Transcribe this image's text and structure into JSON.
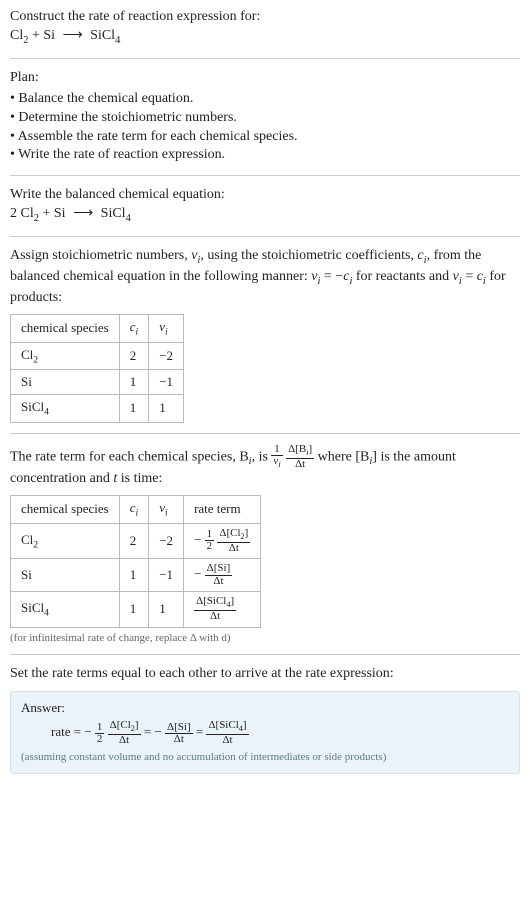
{
  "header": {
    "title": "Construct the rate of reaction expression for:",
    "equation_lhs1": "Cl",
    "equation_lhs1_sub": "2",
    "equation_plus": " + ",
    "equation_lhs2": "Si",
    "equation_arrow": "⟶",
    "equation_rhs": "SiCl",
    "equation_rhs_sub": "4"
  },
  "plan": {
    "title": "Plan:",
    "items": [
      "Balance the chemical equation.",
      "Determine the stoichiometric numbers.",
      "Assemble the rate term for each chemical species.",
      "Write the rate of reaction expression."
    ]
  },
  "balanced": {
    "title": "Write the balanced chemical equation:",
    "coef1": "2 ",
    "sp1": "Cl",
    "sp1_sub": "2",
    "plus": " + ",
    "sp2": "Si",
    "arrow": "⟶",
    "sp3": "SiCl",
    "sp3_sub": "4"
  },
  "assign": {
    "text_a": "Assign stoichiometric numbers, ",
    "nu_i": "ν",
    "nu_i_sub": "i",
    "text_b": ", using the stoichiometric coefficients, ",
    "c_i": "c",
    "c_i_sub": "i",
    "text_c": ", from the balanced chemical equation in the following manner: ",
    "rel1_a": "ν",
    "rel1_a_sub": "i",
    "rel1_b": " = −",
    "rel1_c": "c",
    "rel1_c_sub": "i",
    "text_d": " for reactants and ",
    "rel2_a": "ν",
    "rel2_a_sub": "i",
    "rel2_b": " = ",
    "rel2_c": "c",
    "rel2_c_sub": "i",
    "text_e": " for products:"
  },
  "table1": {
    "headers": {
      "species": "chemical species",
      "ci": "c",
      "ci_sub": "i",
      "vi": "ν",
      "vi_sub": "i"
    },
    "rows": [
      {
        "name": "Cl",
        "name_sub": "2",
        "ci": "2",
        "vi": "−2"
      },
      {
        "name": "Si",
        "name_sub": "",
        "ci": "1",
        "vi": "−1"
      },
      {
        "name": "SiCl",
        "name_sub": "4",
        "ci": "1",
        "vi": "1"
      }
    ]
  },
  "rate_term": {
    "text_a": "The rate term for each chemical species, B",
    "Bi_sub": "i",
    "text_b": ", is ",
    "frac1_num": "1",
    "frac1_den_a": "ν",
    "frac1_den_sub": "i",
    "frac2_num_a": "Δ[B",
    "frac2_num_sub": "i",
    "frac2_num_b": "]",
    "frac2_den": "Δt",
    "text_c": " where [B",
    "text_c_sub": "i",
    "text_d": "] is the amount concentration and ",
    "t": "t",
    "text_e": " is time:"
  },
  "table2": {
    "headers": {
      "species": "chemical species",
      "ci": "c",
      "ci_sub": "i",
      "vi": "ν",
      "vi_sub": "i",
      "rate": "rate term"
    },
    "rows": [
      {
        "name": "Cl",
        "name_sub": "2",
        "ci": "2",
        "vi": "−2",
        "neg": "−",
        "f1_num": "1",
        "f1_den": "2",
        "f2_num": "Δ[Cl",
        "f2_num_sub": "2",
        "f2_num_b": "]",
        "f2_den": "Δt"
      },
      {
        "name": "Si",
        "name_sub": "",
        "ci": "1",
        "vi": "−1",
        "neg": "−",
        "f1_num": "",
        "f1_den": "",
        "f2_num": "Δ[Si]",
        "f2_num_sub": "",
        "f2_num_b": "",
        "f2_den": "Δt"
      },
      {
        "name": "SiCl",
        "name_sub": "4",
        "ci": "1",
        "vi": "1",
        "neg": "",
        "f1_num": "",
        "f1_den": "",
        "f2_num": "Δ[SiCl",
        "f2_num_sub": "4",
        "f2_num_b": "]",
        "f2_den": "Δt"
      }
    ],
    "caption": "(for infinitesimal rate of change, replace Δ with d)"
  },
  "final": {
    "text": "Set the rate terms equal to each other to arrive at the rate expression:"
  },
  "answer": {
    "title": "Answer:",
    "rate_label": "rate = ",
    "neg": "−",
    "half_num": "1",
    "half_den": "2",
    "t1_num": "Δ[Cl",
    "t1_num_sub": "2",
    "t1_num_b": "]",
    "t1_den": "Δt",
    "eq": " = ",
    "t2_num": "Δ[Si]",
    "t2_den": "Δt",
    "t3_num": "Δ[SiCl",
    "t3_num_sub": "4",
    "t3_num_b": "]",
    "t3_den": "Δt",
    "note": "(assuming constant volume and no accumulation of intermediates or side products)"
  },
  "style": {
    "bg": "#ffffff",
    "text_color": "#222222",
    "rule_color": "#cccccc",
    "table_border": "#bbbbbb",
    "answer_bg": "#eaf4f8",
    "answer_border": "#cfe3eb",
    "caption_color": "#666666",
    "base_fontsize": 14,
    "table_fontsize": 13,
    "caption_fontsize": 11
  }
}
